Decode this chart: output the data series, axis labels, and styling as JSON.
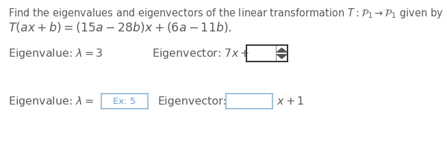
{
  "background_color": "#ffffff",
  "text_color": "#5a5a5a",
  "math_color": "#5a5a5a",
  "input_bg": "#ffffff",
  "input_border_dark": "#333333",
  "input_border_light": "#aaaaaa",
  "placeholder_color": "#5b9bd5",
  "line1": "Find the eigenvalues and eigenvectors of the linear transformation $T : \\mathcal{P}_1 \\rightarrow \\mathcal{P}_1$ given by",
  "line2": "$T(ax + b) = (15a - 28b)x + (6a - 11b).$",
  "ev1_text": "Eigenvalue: $\\lambda = 3$",
  "ev1_vec_text": "Eigenvector: $7x+$",
  "ev2_text": "Eigenvalue: $\\lambda =$",
  "ev2_placeholder": "Ex: 5",
  "ev2_vec_text": "Eigenvector:",
  "ev2_vec_suffix": "$x + 1$",
  "font_size_body": 10.5,
  "font_size_eq": 12.5,
  "font_size_eigen": 11.5
}
